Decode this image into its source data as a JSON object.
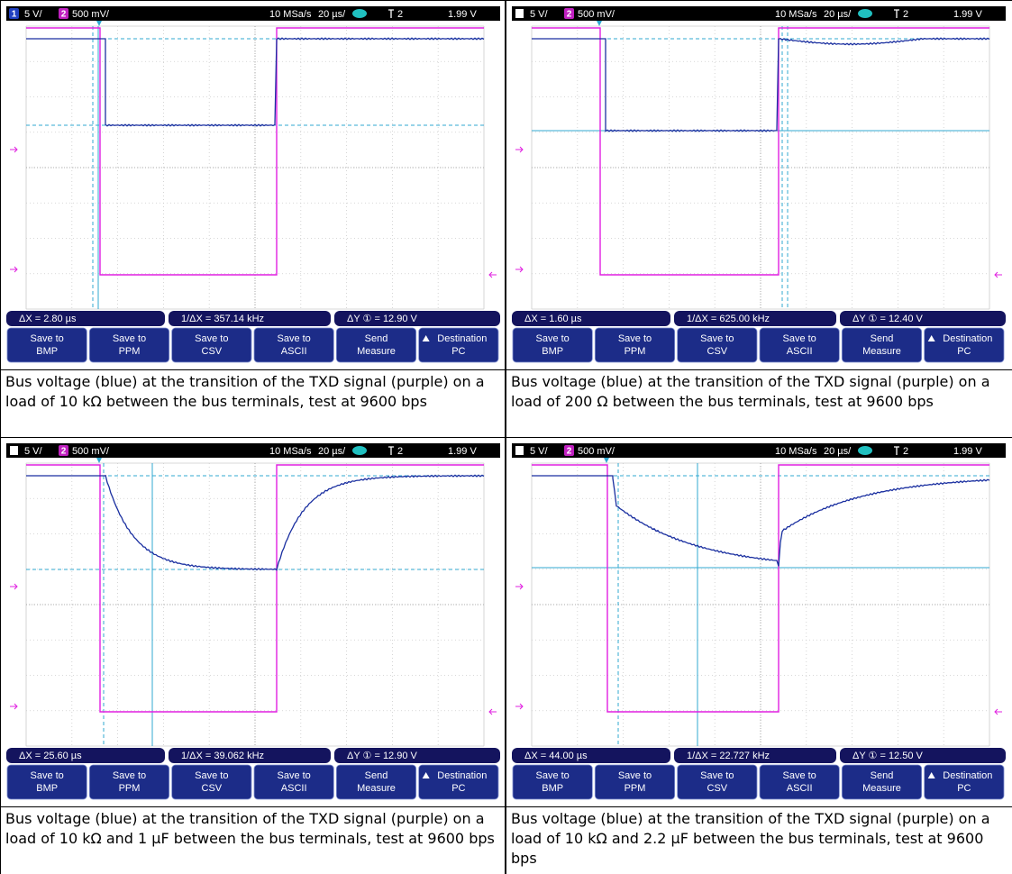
{
  "buttons": [
    [
      "Save to",
      "BMP"
    ],
    [
      "Save to",
      "PPM"
    ],
    [
      "Save to",
      "CSV"
    ],
    [
      "Save to",
      "ASCII"
    ],
    [
      "Send",
      "Measure"
    ],
    [
      "Destination",
      "PC"
    ]
  ],
  "panels": [
    {
      "status": {
        "ch1_badge": "1",
        "ch1": "5 V/",
        "ch2_badge": "2",
        "ch2": "500 mV/",
        "sample_rate": "10 MSa/s",
        "timebase": "20 µs/",
        "trigger": "2",
        "trigger_level": "1.99 V"
      },
      "measurements": {
        "dx": "ΔX = 2.80 µs",
        "inv_dx": "1/ΔX = 357.14 kHz",
        "dy": "ΔY ① = 12.90 V"
      },
      "caption": "Bus voltage (blue) at the transition of the TXD signal (purple) on a load of 10 kΩ between the bus terminals, test at 9600 bps"
    },
    {
      "status": {
        "ch2_badge": "2",
        "ch1": "5 V/",
        "ch2": "500 mV/",
        "sample_rate": "10 MSa/s",
        "timebase": "20 µs/",
        "trigger": "2",
        "trigger_level": "1.99 V"
      },
      "measurements": {
        "dx": "ΔX = 1.60 µs",
        "inv_dx": "1/ΔX = 625.00 kHz",
        "dy": "ΔY ① = 12.40 V"
      },
      "caption": "Bus voltage (blue) at the transition of the TXD signal (purple) on a load of 200 Ω between the bus terminals, test at 9600 bps"
    },
    {
      "status": {
        "ch2_badge": "2",
        "ch1": "5 V/",
        "ch2": "500 mV/",
        "sample_rate": "10 MSa/s",
        "timebase": "20 µs/",
        "trigger": "2",
        "trigger_level": "1.99 V"
      },
      "measurements": {
        "dx": "ΔX = 25.60 µs",
        "inv_dx": "1/ΔX = 39.062 kHz",
        "dy": "ΔY ① = 12.90 V"
      },
      "caption": "Bus voltage (blue) at the transition of the TXD signal (purple) on a load of 10 kΩ and 1 µF between the bus terminals, test at 9600 bps"
    },
    {
      "status": {
        "ch2_badge": "2",
        "ch1": "5 V/",
        "ch2": "500 mV/",
        "sample_rate": "10 MSa/s",
        "timebase": "20 µs/",
        "trigger": "2",
        "trigger_level": "1.99 V"
      },
      "measurements": {
        "dx": "ΔX = 44.00 µs",
        "inv_dx": "1/ΔX = 22.727 kHz",
        "dy": "ΔY ① = 12.50 V"
      },
      "caption": "Bus voltage (blue) at the transition of the TXD signal (purple) on a load of 10 kΩ and 2.2 µF between the bus terminals, test at 9600 bps"
    }
  ]
}
